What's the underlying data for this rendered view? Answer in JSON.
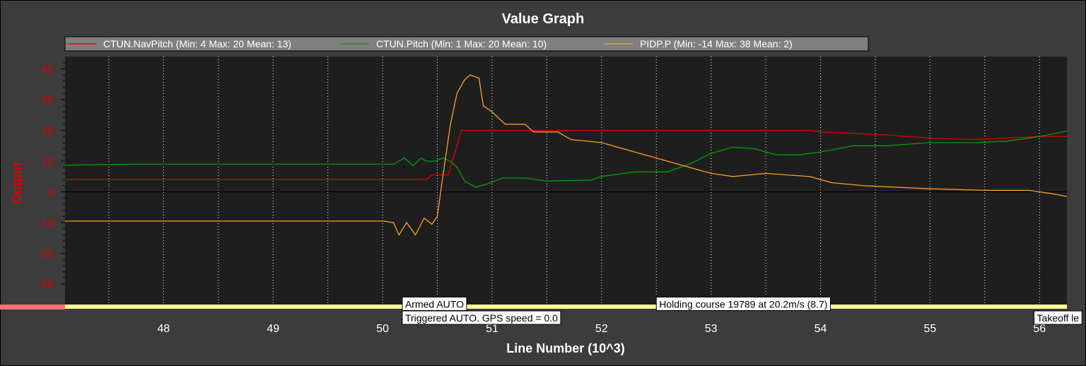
{
  "chart_data": {
    "type": "line",
    "title": "Value Graph",
    "xlabel": "Line Number (10^3)",
    "ylabel": "Output",
    "xlim": [
      47.1,
      56.25
    ],
    "ylim": [
      -38,
      44
    ],
    "xticks": [
      48,
      49,
      50,
      51,
      52,
      53,
      54,
      55,
      56
    ],
    "yticks": [
      -30,
      -20,
      -10,
      0,
      10,
      20,
      30,
      40
    ],
    "grid": true,
    "legend_position": "top",
    "series": [
      {
        "name": "CTUN.NavPitch (Min: 4 Max: 20 Mean: 13)",
        "color": "#e00000",
        "points": [
          [
            47.1,
            4
          ],
          [
            50.4,
            4
          ],
          [
            50.45,
            5.5
          ],
          [
            50.6,
            5.5
          ],
          [
            50.72,
            20
          ],
          [
            53.9,
            20
          ],
          [
            54.0,
            19.5
          ],
          [
            54.3,
            19
          ],
          [
            54.6,
            18.5
          ],
          [
            55.0,
            17.5
          ],
          [
            55.4,
            17
          ],
          [
            55.7,
            17.5
          ],
          [
            56.0,
            18
          ],
          [
            56.25,
            18
          ]
        ]
      },
      {
        "name": "CTUN.Pitch (Min: 1 Max: 20 Mean: 10)",
        "color": "#00a000",
        "points": [
          [
            47.1,
            8.7
          ],
          [
            47.7,
            9
          ],
          [
            50.1,
            9
          ],
          [
            50.2,
            11
          ],
          [
            50.28,
            8.5
          ],
          [
            50.35,
            11
          ],
          [
            50.4,
            10
          ],
          [
            50.48,
            10
          ],
          [
            50.55,
            11
          ],
          [
            50.62,
            10
          ],
          [
            50.68,
            8
          ],
          [
            50.75,
            3.5
          ],
          [
            50.85,
            1.5
          ],
          [
            50.95,
            2.5
          ],
          [
            51.1,
            4.5
          ],
          [
            51.3,
            4.5
          ],
          [
            51.5,
            3.5
          ],
          [
            51.9,
            3.8
          ],
          [
            52.0,
            5
          ],
          [
            52.3,
            6.5
          ],
          [
            52.6,
            6.5
          ],
          [
            52.8,
            9
          ],
          [
            53.0,
            12.5
          ],
          [
            53.2,
            14.5
          ],
          [
            53.4,
            14
          ],
          [
            53.6,
            12
          ],
          [
            53.8,
            12
          ],
          [
            54.0,
            13
          ],
          [
            54.3,
            15
          ],
          [
            54.6,
            15
          ],
          [
            55.0,
            16
          ],
          [
            55.4,
            16
          ],
          [
            55.7,
            16.5
          ],
          [
            56.0,
            18
          ],
          [
            56.25,
            19.8
          ]
        ]
      },
      {
        "name": "PIDP.P (Min: -14 Max: 38 Mean: 2)",
        "color": "#ffa020",
        "points": [
          [
            47.1,
            -9.5
          ],
          [
            50.0,
            -9.5
          ],
          [
            50.1,
            -10
          ],
          [
            50.15,
            -14
          ],
          [
            50.22,
            -10
          ],
          [
            50.3,
            -14
          ],
          [
            50.38,
            -8.5
          ],
          [
            50.45,
            -10.5
          ],
          [
            50.5,
            -8
          ],
          [
            50.55,
            5
          ],
          [
            50.62,
            22
          ],
          [
            50.68,
            32
          ],
          [
            50.75,
            36.5
          ],
          [
            50.8,
            38
          ],
          [
            50.88,
            37
          ],
          [
            50.92,
            28
          ],
          [
            51.0,
            26
          ],
          [
            51.12,
            22
          ],
          [
            51.3,
            22
          ],
          [
            51.38,
            19.5
          ],
          [
            51.6,
            19.5
          ],
          [
            51.72,
            17
          ],
          [
            52.0,
            16
          ],
          [
            52.3,
            13
          ],
          [
            52.6,
            10
          ],
          [
            52.8,
            8
          ],
          [
            53.0,
            6
          ],
          [
            53.2,
            5
          ],
          [
            53.5,
            6
          ],
          [
            53.7,
            5.5
          ],
          [
            53.9,
            5
          ],
          [
            54.1,
            3
          ],
          [
            54.4,
            2
          ],
          [
            54.7,
            1.5
          ],
          [
            55.0,
            1
          ],
          [
            55.5,
            0.5
          ],
          [
            55.9,
            0.5
          ],
          [
            56.1,
            -0.5
          ],
          [
            56.25,
            -1.5
          ]
        ]
      }
    ],
    "annotations": [
      {
        "text": "Armed AUTO",
        "x": 50.18,
        "y": -36.5
      },
      {
        "text": "Triggered AUTO. GPS speed = 0.0",
        "x": 50.18,
        "y": -41
      },
      {
        "text": "Holding course 19789 at 20.2m/s (8.7)",
        "x": 52.5,
        "y": -36.5
      },
      {
        "text": "Takeoff le",
        "x": 55.95,
        "y": -41
      }
    ]
  }
}
